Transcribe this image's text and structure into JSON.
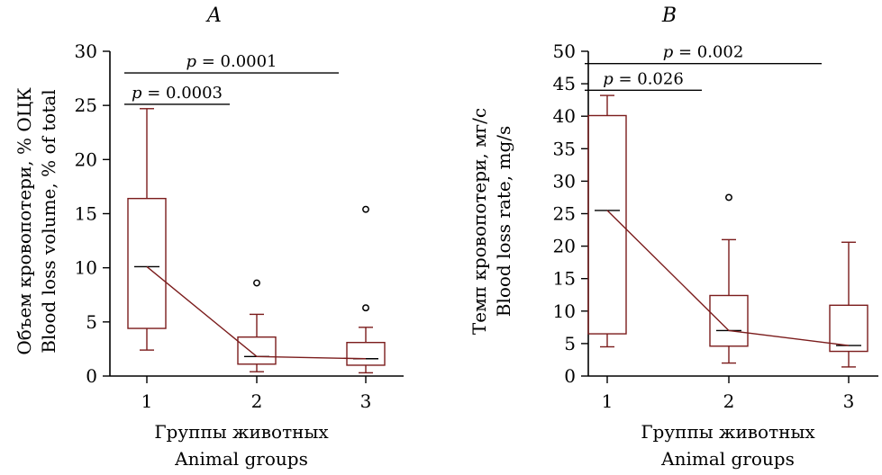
{
  "chart_data": [
    {
      "type": "box",
      "panel_label": "A",
      "ylabel_ru": "Объем кровопотери, % ОЦК",
      "ylabel_en": "Blood loss volume, % of total",
      "xlabel_ru": "Группы животных",
      "xlabel_en": "Animal groups",
      "categories": [
        "1",
        "2",
        "3"
      ],
      "ylim": [
        0,
        30
      ],
      "yticks": [
        0,
        5,
        10,
        15,
        20,
        25,
        30
      ],
      "ytick_labels": [
        "0",
        "5",
        "10",
        "15",
        "20",
        "25",
        "30"
      ],
      "boxes": [
        {
          "group": "1",
          "whisker_low": 2.4,
          "q1": 4.4,
          "median": 10.1,
          "q3": 16.4,
          "whisker_high": 24.7,
          "outliers": []
        },
        {
          "group": "2",
          "whisker_low": 0.4,
          "q1": 1.1,
          "median": 1.8,
          "q3": 3.6,
          "whisker_high": 5.7,
          "outliers": [
            8.6
          ]
        },
        {
          "group": "3",
          "whisker_low": 0.3,
          "q1": 1.0,
          "median": 1.6,
          "q3": 3.1,
          "whisker_high": 4.5,
          "outliers": [
            6.3,
            15.4
          ]
        }
      ],
      "trend_line": [
        10.1,
        1.8,
        1.6
      ],
      "significance": [
        {
          "from": "1",
          "to": "2",
          "y": 25.1,
          "p_symbol": "p",
          "p_value": " = 0.0003"
        },
        {
          "from": "1",
          "to": "3",
          "y": 28.0,
          "p_symbol": "p",
          "p_value": " = 0.0001"
        }
      ],
      "colors": {
        "box": "#7b1c1c",
        "trend": "#7b1c1c",
        "axis": "#000000"
      }
    },
    {
      "type": "box",
      "panel_label": "B",
      "ylabel_ru": "Темп кровопотери, мг/с",
      "ylabel_en": "Blood loss rate, mg/s",
      "xlabel_ru": "Группы животных",
      "xlabel_en": "Animal groups",
      "categories": [
        "1",
        "2",
        "3"
      ],
      "ylim": [
        0,
        50
      ],
      "yticks": [
        0,
        5,
        10,
        15,
        20,
        25,
        30,
        35,
        40,
        45,
        50
      ],
      "ytick_labels": [
        "0",
        "5",
        "10",
        "15",
        "20",
        "25",
        "30",
        "35",
        "40",
        "45",
        "50"
      ],
      "boxes": [
        {
          "group": "1",
          "whisker_low": 4.5,
          "q1": 6.5,
          "median": 25.5,
          "q3": 40.1,
          "whisker_high": 43.2,
          "outliers": []
        },
        {
          "group": "2",
          "whisker_low": 2.0,
          "q1": 4.6,
          "median": 7.0,
          "q3": 12.4,
          "whisker_high": 21.0,
          "outliers": [
            27.5
          ]
        },
        {
          "group": "3",
          "whisker_low": 1.4,
          "q1": 3.8,
          "median": 4.7,
          "q3": 10.9,
          "whisker_high": 20.6,
          "outliers": []
        }
      ],
      "trend_line": [
        25.5,
        7.0,
        4.7
      ],
      "significance": [
        {
          "from": "1",
          "to": "2",
          "y": 44.0,
          "p_symbol": "p",
          "p_value": " = 0.026"
        },
        {
          "from": "1",
          "to": "3",
          "y": 48.1,
          "p_symbol": "p",
          "p_value": " = 0.002"
        }
      ],
      "colors": {
        "box": "#7b1c1c",
        "trend": "#7b1c1c",
        "axis": "#000000"
      }
    }
  ]
}
